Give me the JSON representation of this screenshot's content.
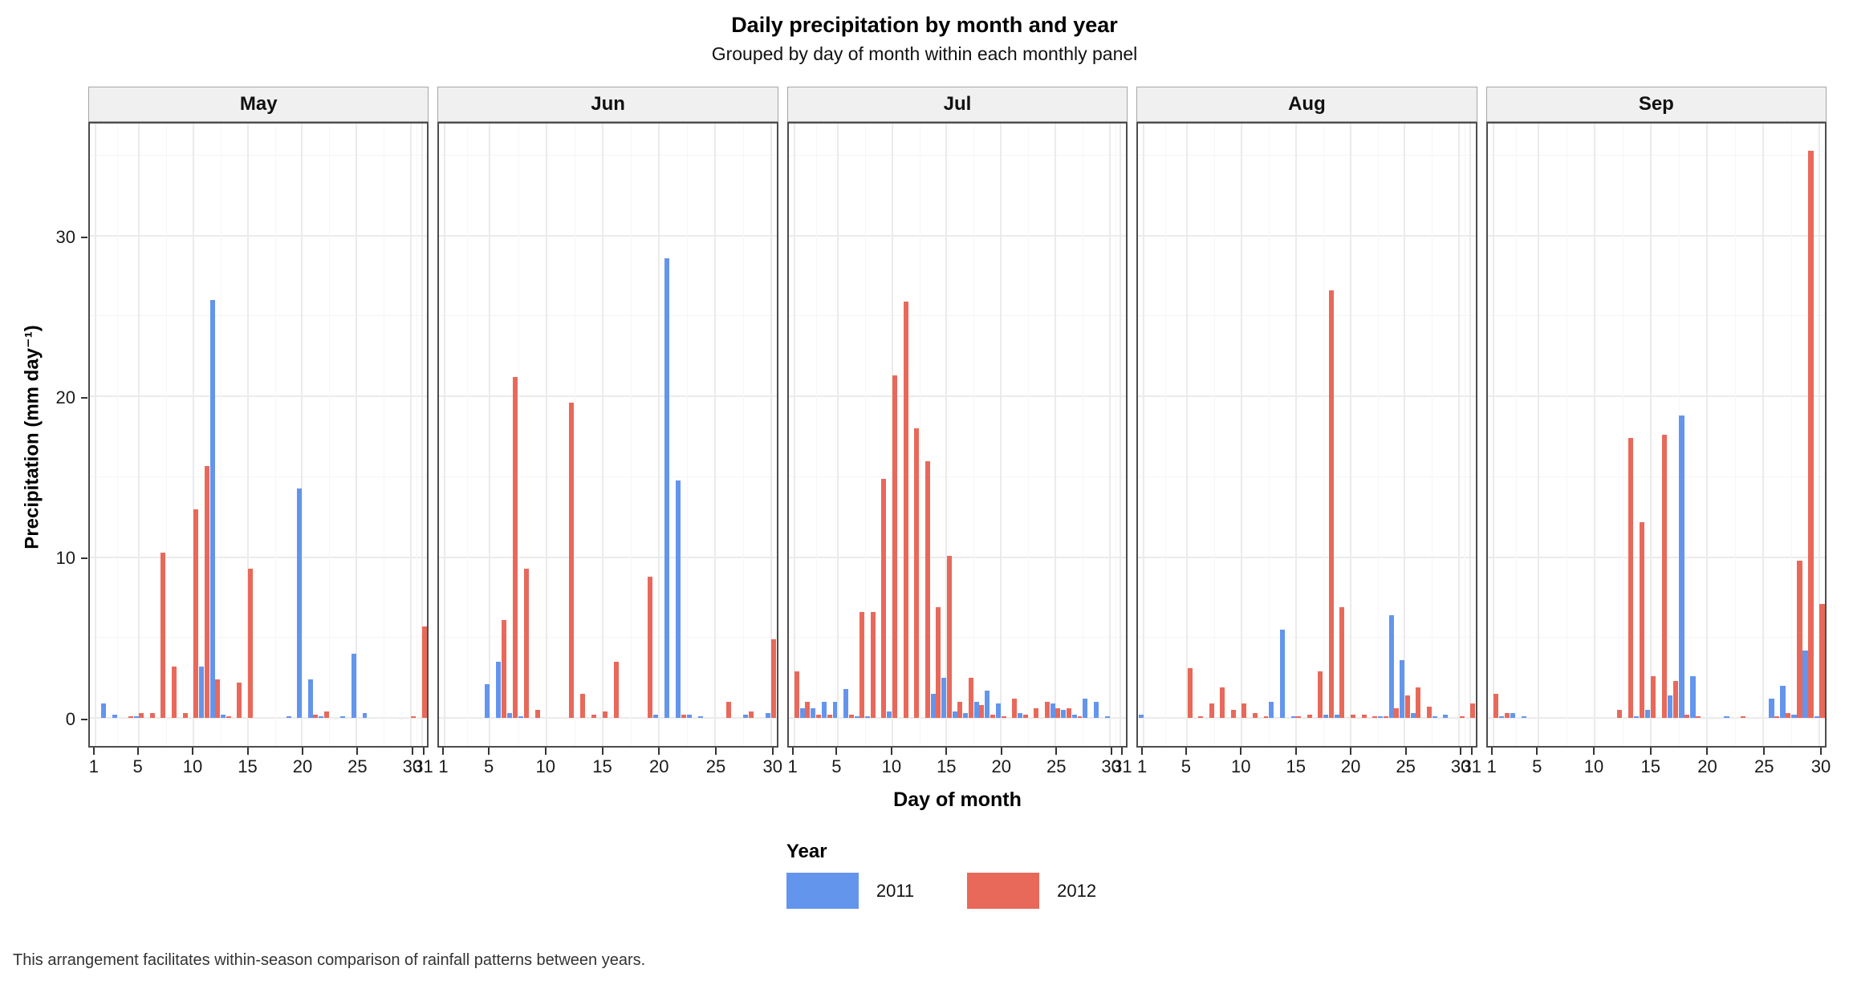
{
  "title": "Daily precipitation by month and year",
  "subtitle": "Grouped by day of month within each monthly panel",
  "caption": "This arrangement facilitates within-season comparison of rainfall patterns between years.",
  "legend": {
    "title": "Year",
    "entries": [
      {
        "label": "2011",
        "color": "#6495ED"
      },
      {
        "label": "2012",
        "color": "#E8695A"
      }
    ]
  },
  "chart_data": {
    "type": "bar",
    "grouping": "dodged",
    "title": "Daily precipitation by month and year",
    "subtitle": "Grouped by day of month within each monthly panel",
    "xlabel": "Day of month",
    "ylabel": "Precipitation (mm day⁻¹)",
    "ylim": [
      0,
      37
    ],
    "yticks": [
      0,
      10,
      20,
      30
    ],
    "yticks_minor": [
      5,
      15,
      25,
      35
    ],
    "grid": true,
    "legend_position": "bottom",
    "facets": [
      {
        "label": "May",
        "days": 31,
        "xticks": [
          1,
          5,
          10,
          15,
          20,
          25,
          30,
          31
        ],
        "series": [
          {
            "name": "2011",
            "points": [
              [
                2,
                0.9
              ],
              [
                3,
                0.2
              ],
              [
                5,
                0.1
              ],
              [
                11,
                3.2
              ],
              [
                12,
                26.0
              ],
              [
                13,
                0.2
              ],
              [
                19,
                0.1
              ],
              [
                20,
                14.3
              ],
              [
                21,
                2.4
              ],
              [
                22,
                0.1
              ],
              [
                24,
                0.1
              ],
              [
                25,
                4.0
              ],
              [
                26,
                0.3
              ]
            ]
          },
          {
            "name": "2012",
            "points": [
              [
                4,
                0.1
              ],
              [
                5,
                0.3
              ],
              [
                6,
                0.3
              ],
              [
                7,
                10.3
              ],
              [
                8,
                3.2
              ],
              [
                9,
                0.3
              ],
              [
                10,
                13.0
              ],
              [
                11,
                15.7
              ],
              [
                12,
                2.4
              ],
              [
                13,
                0.1
              ],
              [
                14,
                2.2
              ],
              [
                15,
                9.3
              ],
              [
                21,
                0.2
              ],
              [
                22,
                0.4
              ],
              [
                30,
                0.1
              ],
              [
                31,
                5.7
              ]
            ]
          }
        ]
      },
      {
        "label": "Jun",
        "days": 30,
        "xticks": [
          1,
          5,
          10,
          15,
          20,
          25,
          30
        ],
        "series": [
          {
            "name": "2011",
            "points": [
              [
                5,
                2.1
              ],
              [
                6,
                3.5
              ],
              [
                7,
                0.3
              ],
              [
                8,
                0.1
              ],
              [
                20,
                0.2
              ],
              [
                21,
                28.6
              ],
              [
                22,
                14.8
              ],
              [
                23,
                0.2
              ],
              [
                24,
                0.1
              ],
              [
                28,
                0.2
              ],
              [
                30,
                0.3
              ]
            ]
          },
          {
            "name": "2012",
            "points": [
              [
                6,
                6.1
              ],
              [
                7,
                21.2
              ],
              [
                8,
                9.3
              ],
              [
                9,
                0.5
              ],
              [
                12,
                19.6
              ],
              [
                13,
                1.5
              ],
              [
                14,
                0.2
              ],
              [
                15,
                0.4
              ],
              [
                16,
                3.5
              ],
              [
                19,
                8.8
              ],
              [
                22,
                0.2
              ],
              [
                26,
                1.0
              ],
              [
                28,
                0.4
              ],
              [
                30,
                4.9
              ]
            ]
          }
        ]
      },
      {
        "label": "Jul",
        "days": 31,
        "xticks": [
          1,
          5,
          10,
          15,
          20,
          25,
          30,
          31
        ],
        "series": [
          {
            "name": "2011",
            "points": [
              [
                2,
                0.6
              ],
              [
                3,
                0.6
              ],
              [
                4,
                1.0
              ],
              [
                5,
                1.0
              ],
              [
                6,
                1.8
              ],
              [
                7,
                0.1
              ],
              [
                8,
                0.1
              ],
              [
                10,
                0.4
              ],
              [
                14,
                1.5
              ],
              [
                15,
                2.5
              ],
              [
                16,
                0.4
              ],
              [
                17,
                0.3
              ],
              [
                18,
                1.0
              ],
              [
                19,
                1.7
              ],
              [
                20,
                0.9
              ],
              [
                22,
                0.3
              ],
              [
                25,
                0.9
              ],
              [
                26,
                0.5
              ],
              [
                27,
                0.2
              ],
              [
                28,
                1.2
              ],
              [
                29,
                1.0
              ],
              [
                30,
                0.1
              ]
            ]
          },
          {
            "name": "2012",
            "points": [
              [
                1,
                2.9
              ],
              [
                2,
                1.0
              ],
              [
                3,
                0.2
              ],
              [
                4,
                0.2
              ],
              [
                6,
                0.2
              ],
              [
                7,
                6.6
              ],
              [
                8,
                6.6
              ],
              [
                9,
                14.9
              ],
              [
                10,
                21.3
              ],
              [
                11,
                25.9
              ],
              [
                12,
                18.0
              ],
              [
                13,
                16.0
              ],
              [
                14,
                6.9
              ],
              [
                15,
                10.1
              ],
              [
                16,
                1.0
              ],
              [
                17,
                2.5
              ],
              [
                18,
                0.8
              ],
              [
                19,
                0.2
              ],
              [
                20,
                0.1
              ],
              [
                21,
                1.2
              ],
              [
                22,
                0.2
              ],
              [
                23,
                0.6
              ],
              [
                24,
                1.0
              ],
              [
                25,
                0.6
              ],
              [
                26,
                0.6
              ],
              [
                27,
                0.1
              ]
            ]
          }
        ]
      },
      {
        "label": "Aug",
        "days": 31,
        "xticks": [
          1,
          5,
          10,
          15,
          20,
          25,
          30,
          31
        ],
        "series": [
          {
            "name": "2011",
            "points": [
              [
                1,
                0.2
              ],
              [
                13,
                1.0
              ],
              [
                14,
                5.5
              ],
              [
                15,
                0.1
              ],
              [
                18,
                0.2
              ],
              [
                19,
                0.2
              ],
              [
                23,
                0.1
              ],
              [
                24,
                6.4
              ],
              [
                25,
                3.6
              ],
              [
                26,
                0.3
              ],
              [
                28,
                0.1
              ],
              [
                29,
                0.2
              ]
            ]
          },
          {
            "name": "2012",
            "points": [
              [
                5,
                3.1
              ],
              [
                6,
                0.1
              ],
              [
                7,
                0.9
              ],
              [
                8,
                1.9
              ],
              [
                9,
                0.5
              ],
              [
                10,
                0.9
              ],
              [
                11,
                0.3
              ],
              [
                12,
                0.1
              ],
              [
                15,
                0.1
              ],
              [
                16,
                0.2
              ],
              [
                17,
                2.9
              ],
              [
                18,
                26.6
              ],
              [
                19,
                6.9
              ],
              [
                20,
                0.2
              ],
              [
                21,
                0.2
              ],
              [
                22,
                0.1
              ],
              [
                23,
                0.1
              ],
              [
                24,
                0.6
              ],
              [
                25,
                1.4
              ],
              [
                26,
                1.9
              ],
              [
                27,
                0.7
              ],
              [
                30,
                0.1
              ],
              [
                31,
                0.9
              ]
            ]
          }
        ]
      },
      {
        "label": "Sep",
        "days": 30,
        "xticks": [
          1,
          5,
          10,
          15,
          20,
          25,
          30
        ],
        "series": [
          {
            "name": "2011",
            "points": [
              [
                2,
                0.1
              ],
              [
                3,
                0.3
              ],
              [
                4,
                0.1
              ],
              [
                14,
                0.1
              ],
              [
                15,
                0.5
              ],
              [
                17,
                1.4
              ],
              [
                18,
                18.8
              ],
              [
                19,
                2.6
              ],
              [
                22,
                0.1
              ],
              [
                26,
                1.2
              ],
              [
                27,
                2.0
              ],
              [
                28,
                0.2
              ],
              [
                29,
                4.2
              ],
              [
                30,
                0.1
              ]
            ]
          },
          {
            "name": "2012",
            "points": [
              [
                1,
                1.5
              ],
              [
                2,
                0.3
              ],
              [
                12,
                0.5
              ],
              [
                13,
                17.4
              ],
              [
                14,
                12.2
              ],
              [
                15,
                2.6
              ],
              [
                16,
                17.6
              ],
              [
                17,
                2.3
              ],
              [
                18,
                0.2
              ],
              [
                19,
                0.1
              ],
              [
                23,
                0.1
              ],
              [
                26,
                0.1
              ],
              [
                27,
                0.3
              ],
              [
                28,
                9.8
              ],
              [
                29,
                35.3
              ],
              [
                30,
                7.1
              ]
            ]
          }
        ]
      }
    ]
  }
}
